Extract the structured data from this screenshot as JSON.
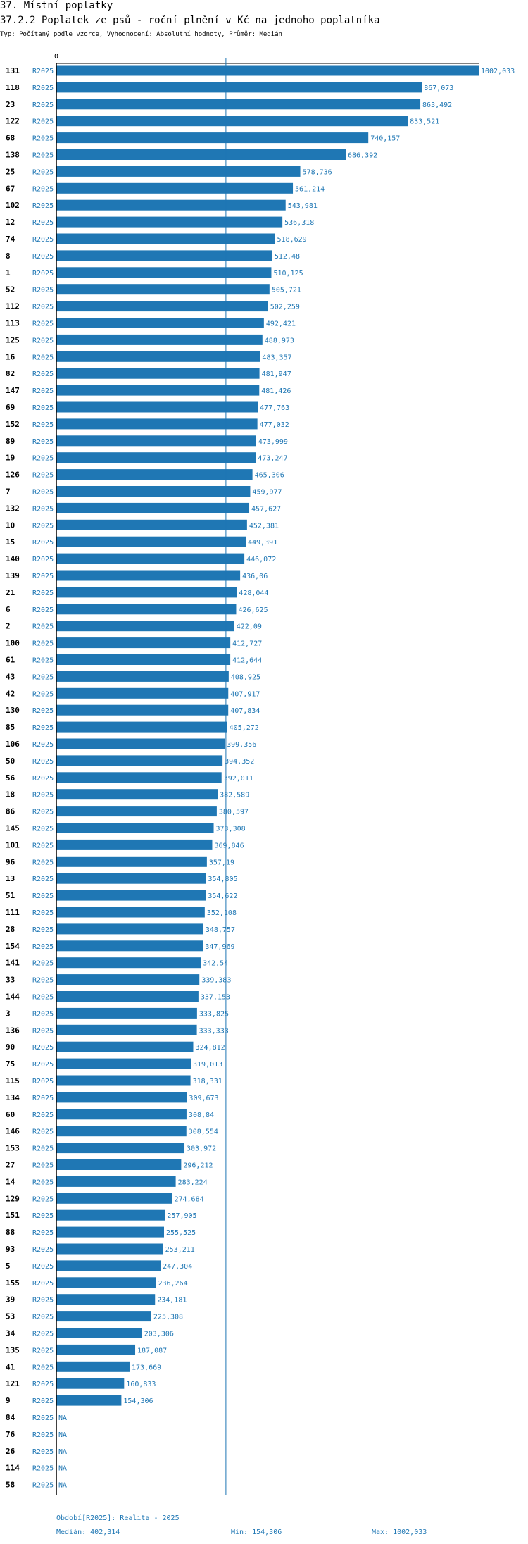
{
  "header": {
    "title": "37. Místní poplatky",
    "subtitle": "37.2.2 Poplatek ze psů - roční plnění v Kč na jednoho poplatníka",
    "type_line": "Typ: Počítaný podle vzorce, Vyhodnocení: Absolutní hodnoty, Průměr: Medián"
  },
  "chart_data": {
    "type": "bar",
    "orientation": "horizontal",
    "xlim": [
      0,
      1002.033
    ],
    "x_ticks": [
      "0"
    ],
    "median_line": 402.314,
    "bar_color": "#1f77b4",
    "rows": [
      {
        "id": "131",
        "period": "R2025",
        "value": 1002.033,
        "label": "1002,033"
      },
      {
        "id": "118",
        "period": "R2025",
        "value": 867.073,
        "label": "867,073"
      },
      {
        "id": "23",
        "period": "R2025",
        "value": 863.492,
        "label": "863,492"
      },
      {
        "id": "122",
        "period": "R2025",
        "value": 833.521,
        "label": "833,521"
      },
      {
        "id": "68",
        "period": "R2025",
        "value": 740.157,
        "label": "740,157"
      },
      {
        "id": "138",
        "period": "R2025",
        "value": 686.392,
        "label": "686,392"
      },
      {
        "id": "25",
        "period": "R2025",
        "value": 578.736,
        "label": "578,736"
      },
      {
        "id": "67",
        "period": "R2025",
        "value": 561.214,
        "label": "561,214"
      },
      {
        "id": "102",
        "period": "R2025",
        "value": 543.981,
        "label": "543,981"
      },
      {
        "id": "12",
        "period": "R2025",
        "value": 536.318,
        "label": "536,318"
      },
      {
        "id": "74",
        "period": "R2025",
        "value": 518.629,
        "label": "518,629"
      },
      {
        "id": "8",
        "period": "R2025",
        "value": 512.48,
        "label": "512,48"
      },
      {
        "id": "1",
        "period": "R2025",
        "value": 510.125,
        "label": "510,125"
      },
      {
        "id": "52",
        "period": "R2025",
        "value": 505.721,
        "label": "505,721"
      },
      {
        "id": "112",
        "period": "R2025",
        "value": 502.259,
        "label": "502,259"
      },
      {
        "id": "113",
        "period": "R2025",
        "value": 492.421,
        "label": "492,421"
      },
      {
        "id": "125",
        "period": "R2025",
        "value": 488.973,
        "label": "488,973"
      },
      {
        "id": "16",
        "period": "R2025",
        "value": 483.357,
        "label": "483,357"
      },
      {
        "id": "82",
        "period": "R2025",
        "value": 481.947,
        "label": "481,947"
      },
      {
        "id": "147",
        "period": "R2025",
        "value": 481.426,
        "label": "481,426"
      },
      {
        "id": "69",
        "period": "R2025",
        "value": 477.763,
        "label": "477,763"
      },
      {
        "id": "152",
        "period": "R2025",
        "value": 477.032,
        "label": "477,032"
      },
      {
        "id": "89",
        "period": "R2025",
        "value": 473.999,
        "label": "473,999"
      },
      {
        "id": "19",
        "period": "R2025",
        "value": 473.247,
        "label": "473,247"
      },
      {
        "id": "126",
        "period": "R2025",
        "value": 465.306,
        "label": "465,306"
      },
      {
        "id": "7",
        "period": "R2025",
        "value": 459.977,
        "label": "459,977"
      },
      {
        "id": "132",
        "period": "R2025",
        "value": 457.627,
        "label": "457,627"
      },
      {
        "id": "10",
        "period": "R2025",
        "value": 452.381,
        "label": "452,381"
      },
      {
        "id": "15",
        "period": "R2025",
        "value": 449.391,
        "label": "449,391"
      },
      {
        "id": "140",
        "period": "R2025",
        "value": 446.072,
        "label": "446,072"
      },
      {
        "id": "139",
        "period": "R2025",
        "value": 436.06,
        "label": "436,06"
      },
      {
        "id": "21",
        "period": "R2025",
        "value": 428.044,
        "label": "428,044"
      },
      {
        "id": "6",
        "period": "R2025",
        "value": 426.625,
        "label": "426,625"
      },
      {
        "id": "2",
        "period": "R2025",
        "value": 422.09,
        "label": "422,09"
      },
      {
        "id": "100",
        "period": "R2025",
        "value": 412.727,
        "label": "412,727"
      },
      {
        "id": "61",
        "period": "R2025",
        "value": 412.644,
        "label": "412,644"
      },
      {
        "id": "43",
        "period": "R2025",
        "value": 408.925,
        "label": "408,925"
      },
      {
        "id": "42",
        "period": "R2025",
        "value": 407.917,
        "label": "407,917"
      },
      {
        "id": "130",
        "period": "R2025",
        "value": 407.834,
        "label": "407,834"
      },
      {
        "id": "85",
        "period": "R2025",
        "value": 405.272,
        "label": "405,272"
      },
      {
        "id": "106",
        "period": "R2025",
        "value": 399.356,
        "label": "399,356"
      },
      {
        "id": "50",
        "period": "R2025",
        "value": 394.352,
        "label": "394,352"
      },
      {
        "id": "56",
        "period": "R2025",
        "value": 392.011,
        "label": "392,011"
      },
      {
        "id": "18",
        "period": "R2025",
        "value": 382.589,
        "label": "382,589"
      },
      {
        "id": "86",
        "period": "R2025",
        "value": 380.597,
        "label": "380,597"
      },
      {
        "id": "145",
        "period": "R2025",
        "value": 373.308,
        "label": "373,308"
      },
      {
        "id": "101",
        "period": "R2025",
        "value": 369.846,
        "label": "369,846"
      },
      {
        "id": "96",
        "period": "R2025",
        "value": 357.19,
        "label": "357,19"
      },
      {
        "id": "13",
        "period": "R2025",
        "value": 354.805,
        "label": "354,805"
      },
      {
        "id": "51",
        "period": "R2025",
        "value": 354.622,
        "label": "354,622"
      },
      {
        "id": "111",
        "period": "R2025",
        "value": 352.108,
        "label": "352,108"
      },
      {
        "id": "28",
        "period": "R2025",
        "value": 348.757,
        "label": "348,757"
      },
      {
        "id": "154",
        "period": "R2025",
        "value": 347.969,
        "label": "347,969"
      },
      {
        "id": "141",
        "period": "R2025",
        "value": 342.54,
        "label": "342,54"
      },
      {
        "id": "33",
        "period": "R2025",
        "value": 339.383,
        "label": "339,383"
      },
      {
        "id": "144",
        "period": "R2025",
        "value": 337.153,
        "label": "337,153"
      },
      {
        "id": "3",
        "period": "R2025",
        "value": 333.825,
        "label": "333,825"
      },
      {
        "id": "136",
        "period": "R2025",
        "value": 333.333,
        "label": "333,333"
      },
      {
        "id": "90",
        "period": "R2025",
        "value": 324.812,
        "label": "324,812"
      },
      {
        "id": "75",
        "period": "R2025",
        "value": 319.013,
        "label": "319,013"
      },
      {
        "id": "115",
        "period": "R2025",
        "value": 318.331,
        "label": "318,331"
      },
      {
        "id": "134",
        "period": "R2025",
        "value": 309.673,
        "label": "309,673"
      },
      {
        "id": "60",
        "period": "R2025",
        "value": 308.84,
        "label": "308,84"
      },
      {
        "id": "146",
        "period": "R2025",
        "value": 308.554,
        "label": "308,554"
      },
      {
        "id": "153",
        "period": "R2025",
        "value": 303.972,
        "label": "303,972"
      },
      {
        "id": "27",
        "period": "R2025",
        "value": 296.212,
        "label": "296,212"
      },
      {
        "id": "14",
        "period": "R2025",
        "value": 283.224,
        "label": "283,224"
      },
      {
        "id": "129",
        "period": "R2025",
        "value": 274.684,
        "label": "274,684"
      },
      {
        "id": "151",
        "period": "R2025",
        "value": 257.905,
        "label": "257,905"
      },
      {
        "id": "88",
        "period": "R2025",
        "value": 255.525,
        "label": "255,525"
      },
      {
        "id": "93",
        "period": "R2025",
        "value": 253.211,
        "label": "253,211"
      },
      {
        "id": "5",
        "period": "R2025",
        "value": 247.304,
        "label": "247,304"
      },
      {
        "id": "155",
        "period": "R2025",
        "value": 236.264,
        "label": "236,264"
      },
      {
        "id": "39",
        "period": "R2025",
        "value": 234.181,
        "label": "234,181"
      },
      {
        "id": "53",
        "period": "R2025",
        "value": 225.308,
        "label": "225,308"
      },
      {
        "id": "34",
        "period": "R2025",
        "value": 203.306,
        "label": "203,306"
      },
      {
        "id": "135",
        "period": "R2025",
        "value": 187.087,
        "label": "187,087"
      },
      {
        "id": "41",
        "period": "R2025",
        "value": 173.669,
        "label": "173,669"
      },
      {
        "id": "121",
        "period": "R2025",
        "value": 160.833,
        "label": "160,833"
      },
      {
        "id": "9",
        "period": "R2025",
        "value": 154.306,
        "label": "154,306"
      },
      {
        "id": "84",
        "period": "R2025",
        "value": null,
        "label": "NA"
      },
      {
        "id": "76",
        "period": "R2025",
        "value": null,
        "label": "NA"
      },
      {
        "id": "26",
        "period": "R2025",
        "value": null,
        "label": "NA"
      },
      {
        "id": "114",
        "period": "R2025",
        "value": null,
        "label": "NA"
      },
      {
        "id": "58",
        "period": "R2025",
        "value": null,
        "label": "NA"
      }
    ]
  },
  "footer": {
    "period": "Období[R2025]: Realita - 2025",
    "median": "Medián: 402,314",
    "min": "Min: 154,306",
    "max": "Max: 1002,033"
  }
}
